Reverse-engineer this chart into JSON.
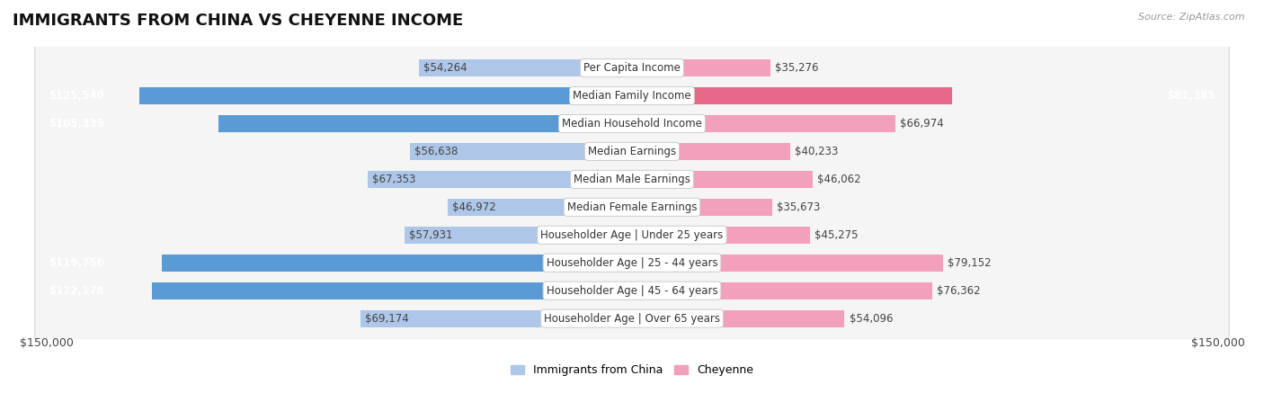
{
  "title": "IMMIGRANTS FROM CHINA VS CHEYENNE INCOME",
  "source": "Source: ZipAtlas.com",
  "categories": [
    "Per Capita Income",
    "Median Family Income",
    "Median Household Income",
    "Median Earnings",
    "Median Male Earnings",
    "Median Female Earnings",
    "Householder Age | Under 25 years",
    "Householder Age | 25 - 44 years",
    "Householder Age | 45 - 64 years",
    "Householder Age | Over 65 years"
  ],
  "china_values": [
    54264,
    125540,
    105335,
    56638,
    67353,
    46972,
    57931,
    119756,
    122178,
    69174
  ],
  "cheyenne_values": [
    35276,
    81385,
    66974,
    40233,
    46062,
    35673,
    45275,
    79152,
    76362,
    54096
  ],
  "china_labels": [
    "$54,264",
    "$125,540",
    "$105,335",
    "$56,638",
    "$67,353",
    "$46,972",
    "$57,931",
    "$119,756",
    "$122,178",
    "$69,174"
  ],
  "cheyenne_labels": [
    "$35,276",
    "$81,385",
    "$66,974",
    "$40,233",
    "$46,062",
    "$35,673",
    "$45,275",
    "$79,152",
    "$76,362",
    "$54,096"
  ],
  "china_dark": [
    false,
    true,
    true,
    false,
    false,
    false,
    false,
    true,
    true,
    false
  ],
  "cheyenne_dark": [
    false,
    true,
    false,
    false,
    false,
    false,
    false,
    false,
    false,
    false
  ],
  "china_color_light": "#aec6e8",
  "china_color_dark": "#5b9bd5",
  "cheyenne_color_light": "#f2a0bc",
  "cheyenne_color_dark": "#e8688a",
  "max_value": 150000,
  "bg_color": "#ffffff",
  "row_bg": "#f5f5f5",
  "row_border": "#dddddd",
  "legend_china": "Immigrants from China",
  "legend_cheyenne": "Cheyenne",
  "xlabel_left": "$150,000",
  "xlabel_right": "$150,000",
  "title_fontsize": 13,
  "label_fontsize": 8.5,
  "category_fontsize": 8.5
}
